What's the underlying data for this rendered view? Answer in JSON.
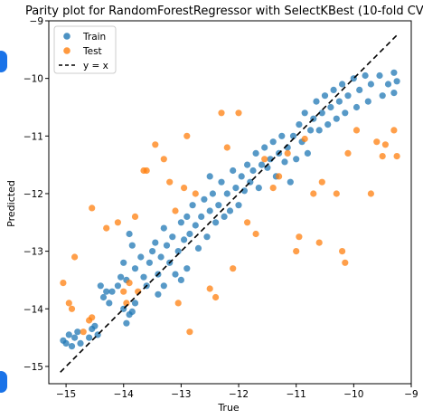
{
  "chart_data": {
    "type": "scatter",
    "title": "Parity plot for RandomForestRegressor with SelectKBest (10-fold CV)",
    "xlabel": "True",
    "ylabel": "Predicted",
    "xlim": [
      -15.3,
      -9.0
    ],
    "ylim": [
      -15.3,
      -9.0
    ],
    "x_ticks": [
      -15,
      -14,
      -13,
      -12,
      -11,
      -10,
      -9
    ],
    "y_ticks": [
      -15,
      -14,
      -13,
      -12,
      -11,
      -10,
      -9
    ],
    "x_tick_labels": [
      "−15",
      "−14",
      "−13",
      "−12",
      "−11",
      "−10",
      "−9"
    ],
    "y_tick_labels": [
      "−15",
      "−14",
      "−13",
      "−12",
      "−11",
      "−10",
      "−9"
    ],
    "grid": false,
    "legend_position": "top-left",
    "series": [
      {
        "name": "Train",
        "color": "#1f77b4",
        "points": [
          [
            -15.05,
            -14.55
          ],
          [
            -15.0,
            -14.6
          ],
          [
            -14.95,
            -14.45
          ],
          [
            -14.9,
            -14.65
          ],
          [
            -14.85,
            -14.5
          ],
          [
            -14.8,
            -14.4
          ],
          [
            -14.75,
            -14.6
          ],
          [
            -14.6,
            -14.5
          ],
          [
            -14.5,
            -14.3
          ],
          [
            -14.45,
            -14.45
          ],
          [
            -14.55,
            -14.35
          ],
          [
            -14.4,
            -13.6
          ],
          [
            -14.35,
            -13.8
          ],
          [
            -14.3,
            -13.7
          ],
          [
            -14.25,
            -13.9
          ],
          [
            -14.2,
            -13.7
          ],
          [
            -14.1,
            -13.6
          ],
          [
            -14.05,
            -13.45
          ],
          [
            -14.0,
            -13.2
          ],
          [
            -13.95,
            -13.5
          ],
          [
            -14.0,
            -14.0
          ],
          [
            -13.9,
            -14.1
          ],
          [
            -13.95,
            -14.25
          ],
          [
            -13.85,
            -14.05
          ],
          [
            -13.8,
            -13.9
          ],
          [
            -13.9,
            -12.7
          ],
          [
            -13.85,
            -12.9
          ],
          [
            -13.8,
            -13.3
          ],
          [
            -13.7,
            -13.1
          ],
          [
            -13.65,
            -13.45
          ],
          [
            -13.6,
            -13.6
          ],
          [
            -13.55,
            -13.2
          ],
          [
            -13.5,
            -13.0
          ],
          [
            -13.45,
            -12.85
          ],
          [
            -13.4,
            -13.4
          ],
          [
            -13.35,
            -13.1
          ],
          [
            -13.4,
            -13.75
          ],
          [
            -13.3,
            -13.6
          ],
          [
            -13.3,
            -12.6
          ],
          [
            -13.25,
            -12.9
          ],
          [
            -13.2,
            -13.2
          ],
          [
            -13.15,
            -12.75
          ],
          [
            -13.1,
            -13.4
          ],
          [
            -13.05,
            -13.0
          ],
          [
            -13.0,
            -12.5
          ],
          [
            -12.95,
            -12.8
          ],
          [
            -13.0,
            -13.5
          ],
          [
            -12.9,
            -12.4
          ],
          [
            -12.85,
            -12.7
          ],
          [
            -12.9,
            -13.3
          ],
          [
            -12.8,
            -12.2
          ],
          [
            -12.75,
            -12.55
          ],
          [
            -12.7,
            -12.95
          ],
          [
            -12.65,
            -12.4
          ],
          [
            -12.6,
            -12.1
          ],
          [
            -12.55,
            -12.75
          ],
          [
            -12.5,
            -12.3
          ],
          [
            -12.5,
            -11.7
          ],
          [
            -12.45,
            -12.0
          ],
          [
            -12.4,
            -12.5
          ],
          [
            -12.35,
            -12.2
          ],
          [
            -12.3,
            -11.8
          ],
          [
            -12.25,
            -12.4
          ],
          [
            -12.2,
            -12.0
          ],
          [
            -12.15,
            -12.3
          ],
          [
            -12.1,
            -11.6
          ],
          [
            -12.05,
            -11.9
          ],
          [
            -12.0,
            -12.2
          ],
          [
            -11.95,
            -11.7
          ],
          [
            -11.9,
            -11.95
          ],
          [
            -11.85,
            -11.5
          ],
          [
            -11.8,
            -11.8
          ],
          [
            -11.75,
            -11.6
          ],
          [
            -11.7,
            -11.3
          ],
          [
            -11.65,
            -11.9
          ],
          [
            -11.6,
            -11.5
          ],
          [
            -11.55,
            -11.2
          ],
          [
            -11.5,
            -11.55
          ],
          [
            -11.45,
            -11.4
          ],
          [
            -11.4,
            -11.1
          ],
          [
            -11.35,
            -11.7
          ],
          [
            -11.3,
            -11.3
          ],
          [
            -11.25,
            -11.0
          ],
          [
            -11.2,
            -11.45
          ],
          [
            -11.15,
            -11.2
          ],
          [
            -11.1,
            -11.8
          ],
          [
            -11.05,
            -11.0
          ],
          [
            -11.0,
            -11.4
          ],
          [
            -10.95,
            -10.8
          ],
          [
            -10.9,
            -11.1
          ],
          [
            -10.85,
            -10.6
          ],
          [
            -10.8,
            -11.3
          ],
          [
            -10.75,
            -10.9
          ],
          [
            -10.7,
            -10.7
          ],
          [
            -10.65,
            -10.4
          ],
          [
            -10.6,
            -10.9
          ],
          [
            -10.55,
            -10.6
          ],
          [
            -10.5,
            -10.3
          ],
          [
            -10.45,
            -10.8
          ],
          [
            -10.4,
            -10.5
          ],
          [
            -10.35,
            -10.2
          ],
          [
            -10.3,
            -10.7
          ],
          [
            -10.25,
            -10.4
          ],
          [
            -10.2,
            -10.1
          ],
          [
            -10.15,
            -10.6
          ],
          [
            -10.1,
            -10.3
          ],
          [
            -10.0,
            -10.0
          ],
          [
            -9.95,
            -10.5
          ],
          [
            -9.9,
            -10.2
          ],
          [
            -9.8,
            -9.95
          ],
          [
            -9.75,
            -10.4
          ],
          [
            -9.7,
            -10.1
          ],
          [
            -9.55,
            -9.95
          ],
          [
            -9.5,
            -10.3
          ],
          [
            -9.4,
            -10.1
          ],
          [
            -9.3,
            -9.9
          ],
          [
            -9.25,
            -10.05
          ],
          [
            -9.3,
            -10.25
          ]
        ]
      },
      {
        "name": "Test",
        "color": "#ff7f0e",
        "points": [
          [
            -15.05,
            -13.55
          ],
          [
            -14.95,
            -13.9
          ],
          [
            -14.9,
            -14.0
          ],
          [
            -14.85,
            -13.1
          ],
          [
            -14.6,
            -14.2
          ],
          [
            -14.55,
            -14.15
          ],
          [
            -14.7,
            -14.4
          ],
          [
            -14.55,
            -12.25
          ],
          [
            -14.3,
            -12.6
          ],
          [
            -14.1,
            -12.5
          ],
          [
            -14.0,
            -13.7
          ],
          [
            -13.95,
            -13.9
          ],
          [
            -13.9,
            -13.55
          ],
          [
            -13.8,
            -12.4
          ],
          [
            -13.75,
            -13.7
          ],
          [
            -13.65,
            -11.6
          ],
          [
            -13.6,
            -11.6
          ],
          [
            -13.45,
            -11.15
          ],
          [
            -13.3,
            -11.4
          ],
          [
            -13.2,
            -11.8
          ],
          [
            -13.1,
            -12.3
          ],
          [
            -13.05,
            -13.9
          ],
          [
            -12.95,
            -11.9
          ],
          [
            -12.9,
            -11.0
          ],
          [
            -12.85,
            -14.4
          ],
          [
            -12.75,
            -12.0
          ],
          [
            -12.5,
            -13.65
          ],
          [
            -12.4,
            -13.8
          ],
          [
            -12.3,
            -10.6
          ],
          [
            -12.2,
            -11.2
          ],
          [
            -12.1,
            -13.3
          ],
          [
            -12.0,
            -10.6
          ],
          [
            -11.85,
            -12.5
          ],
          [
            -11.7,
            -12.7
          ],
          [
            -11.55,
            -11.4
          ],
          [
            -11.4,
            -11.9
          ],
          [
            -11.3,
            -11.7
          ],
          [
            -11.15,
            -11.3
          ],
          [
            -11.0,
            -13.0
          ],
          [
            -10.95,
            -12.75
          ],
          [
            -10.85,
            -11.05
          ],
          [
            -10.7,
            -12.0
          ],
          [
            -10.6,
            -12.85
          ],
          [
            -10.55,
            -11.8
          ],
          [
            -10.3,
            -12.0
          ],
          [
            -10.2,
            -13.0
          ],
          [
            -10.15,
            -13.2
          ],
          [
            -10.1,
            -11.3
          ],
          [
            -9.95,
            -10.9
          ],
          [
            -9.7,
            -12.0
          ],
          [
            -9.6,
            -11.1
          ],
          [
            -9.5,
            -11.35
          ],
          [
            -9.45,
            -11.15
          ],
          [
            -9.3,
            -10.9
          ],
          [
            -9.25,
            -11.35
          ]
        ]
      }
    ],
    "reference_line": {
      "name": "y = x",
      "from": [
        -15.1,
        -15.1
      ],
      "to": [
        -9.25,
        -9.25
      ],
      "style": "dashed",
      "color": "#000000"
    }
  }
}
